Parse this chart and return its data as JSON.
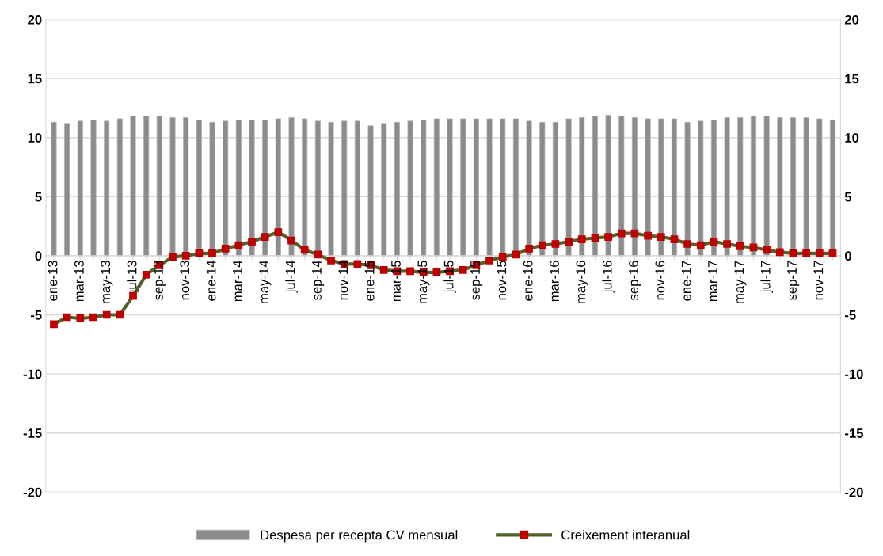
{
  "chart_data": {
    "type": "bar",
    "categories": [
      "ene-13",
      null,
      "mar-13",
      null,
      "may-13",
      null,
      "jul-13",
      null,
      "sep-13",
      null,
      "nov-13",
      null,
      "ene-14",
      null,
      "mar-14",
      null,
      "may-14",
      null,
      "jul-14",
      null,
      "sep-14",
      null,
      "nov-14",
      null,
      "ene-15",
      null,
      "mar-15",
      null,
      "may-15",
      null,
      "jul-15",
      null,
      "sep-15",
      null,
      "nov-15",
      null,
      "ene-16",
      null,
      "mar-16",
      null,
      "may-16",
      null,
      "jul-16",
      null,
      "sep-16",
      null,
      "nov-16",
      null,
      "ene-17",
      null,
      "mar-17",
      null,
      "may-17",
      null,
      "jul-17",
      null,
      "sep-17",
      null,
      "nov-17",
      null
    ],
    "series": [
      {
        "name": "Despesa per recepta CV mensual",
        "color": "#8c8c8c",
        "values": [
          11.3,
          11.2,
          11.4,
          11.5,
          11.4,
          11.6,
          11.8,
          11.8,
          11.8,
          11.7,
          11.7,
          11.5,
          11.3,
          11.4,
          11.5,
          11.5,
          11.5,
          11.6,
          11.7,
          11.6,
          11.4,
          11.3,
          11.4,
          11.4,
          11.0,
          11.2,
          11.3,
          11.4,
          11.5,
          11.6,
          11.6,
          11.6,
          11.6,
          11.6,
          11.6,
          11.6,
          11.4,
          11.3,
          11.3,
          11.6,
          11.7,
          11.8,
          11.9,
          11.8,
          11.7,
          11.6,
          11.6,
          11.6,
          11.3,
          11.4,
          11.5,
          11.7,
          11.7,
          11.8,
          11.8,
          11.7,
          11.7,
          11.7,
          11.6,
          11.5
        ]
      },
      {
        "name": "Creixement interanual",
        "type": "line",
        "color": "#4f6228",
        "marker": "square",
        "values": [
          -5.8,
          -5.2,
          -5.3,
          -5.2,
          -5.0,
          -5.0,
          -3.4,
          -1.6,
          -0.8,
          -0.1,
          0.0,
          0.2,
          0.2,
          0.6,
          0.9,
          1.2,
          1.6,
          2.0,
          1.3,
          0.5,
          0.1,
          -0.4,
          -0.7,
          -0.7,
          -0.8,
          -1.2,
          -1.3,
          -1.3,
          -1.4,
          -1.4,
          -1.3,
          -1.2,
          -0.8,
          -0.4,
          -0.1,
          0.1,
          0.6,
          0.9,
          1.0,
          1.2,
          1.4,
          1.5,
          1.6,
          1.9,
          1.9,
          1.7,
          1.6,
          1.4,
          1.0,
          0.9,
          1.2,
          1.0,
          0.8,
          0.7,
          0.5,
          0.3,
          0.2,
          0.2,
          0.2,
          0.2
        ]
      }
    ],
    "ylim": [
      -20,
      20
    ],
    "yticks": [
      -20,
      -15,
      -10,
      -5,
      0,
      5,
      10,
      15,
      20
    ],
    "y2lim": [
      -20,
      20
    ],
    "y2ticks": [
      -20,
      -15,
      -10,
      -5,
      0,
      5,
      10,
      15,
      20
    ],
    "grid": "y",
    "legend": "bottom"
  }
}
